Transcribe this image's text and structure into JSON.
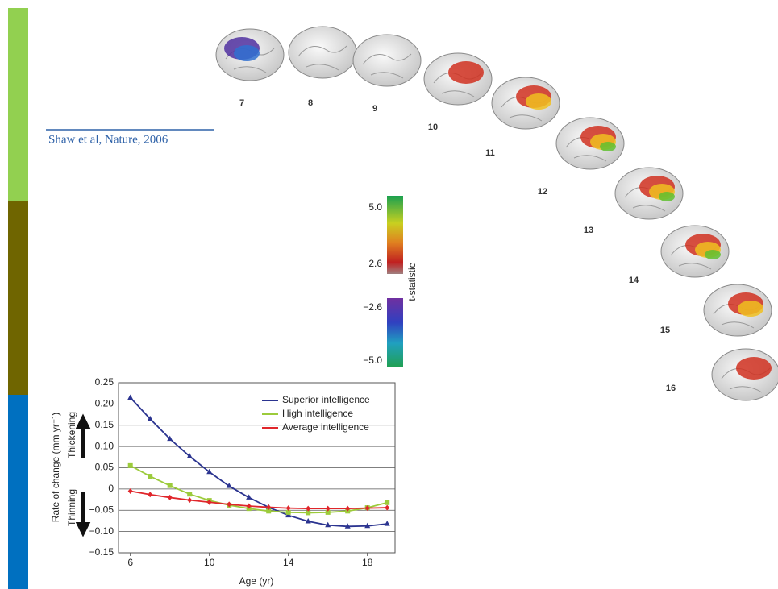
{
  "citation": "Shaw et al, Nature, 2006",
  "brain_ages": [
    "7",
    "8",
    "9",
    "10",
    "11",
    "12",
    "13",
    "14",
    "15",
    "16"
  ],
  "colorbar": {
    "label": "t-statistic",
    "ticks": [
      "5.0",
      "2.6",
      "−2.6",
      "−5.0"
    ]
  },
  "chart_data": {
    "type": "line",
    "x_label": "Age (yr)",
    "y_label": "Rate of change (mm yr⁻¹)",
    "annotations": [
      "Thickening",
      "Thinning"
    ],
    "x": [
      6,
      7,
      8,
      9,
      10,
      11,
      12,
      13,
      14,
      15,
      16,
      17,
      18,
      19
    ],
    "xlim": [
      5.4,
      19.4
    ],
    "xticks": [
      6,
      10,
      14,
      18
    ],
    "ylim": [
      -0.15,
      0.25
    ],
    "yticks": [
      {
        "value": -0.15,
        "label": "−0.15"
      },
      {
        "value": -0.1,
        "label": "−0.10"
      },
      {
        "value": -0.05,
        "label": "−0.05"
      },
      0,
      0.05,
      {
        "value": 0.1,
        "label": "0.10"
      },
      0.15,
      {
        "value": 0.2,
        "label": "0.20"
      },
      0.25
    ],
    "grid": true,
    "legend": "upper right",
    "series": [
      {
        "name": "Superior intelligence",
        "color": "#2b3490",
        "marker": "triangle",
        "values": [
          0.215,
          0.165,
          0.118,
          0.077,
          0.04,
          0.007,
          -0.02,
          -0.043,
          -0.062,
          -0.076,
          -0.085,
          -0.088,
          -0.087,
          -0.082
        ]
      },
      {
        "name": "High intelligence",
        "color": "#9ccb3b",
        "marker": "square",
        "values": [
          0.055,
          0.03,
          0.008,
          -0.012,
          -0.027,
          -0.038,
          -0.046,
          -0.052,
          -0.055,
          -0.056,
          -0.055,
          -0.052,
          -0.044,
          -0.032
        ]
      },
      {
        "name": "Average intelligence",
        "color": "#e0262b",
        "marker": "diamond",
        "values": [
          -0.005,
          -0.013,
          -0.02,
          -0.026,
          -0.031,
          -0.036,
          -0.04,
          -0.043,
          -0.045,
          -0.046,
          -0.046,
          -0.046,
          -0.045,
          -0.044
        ]
      }
    ]
  }
}
